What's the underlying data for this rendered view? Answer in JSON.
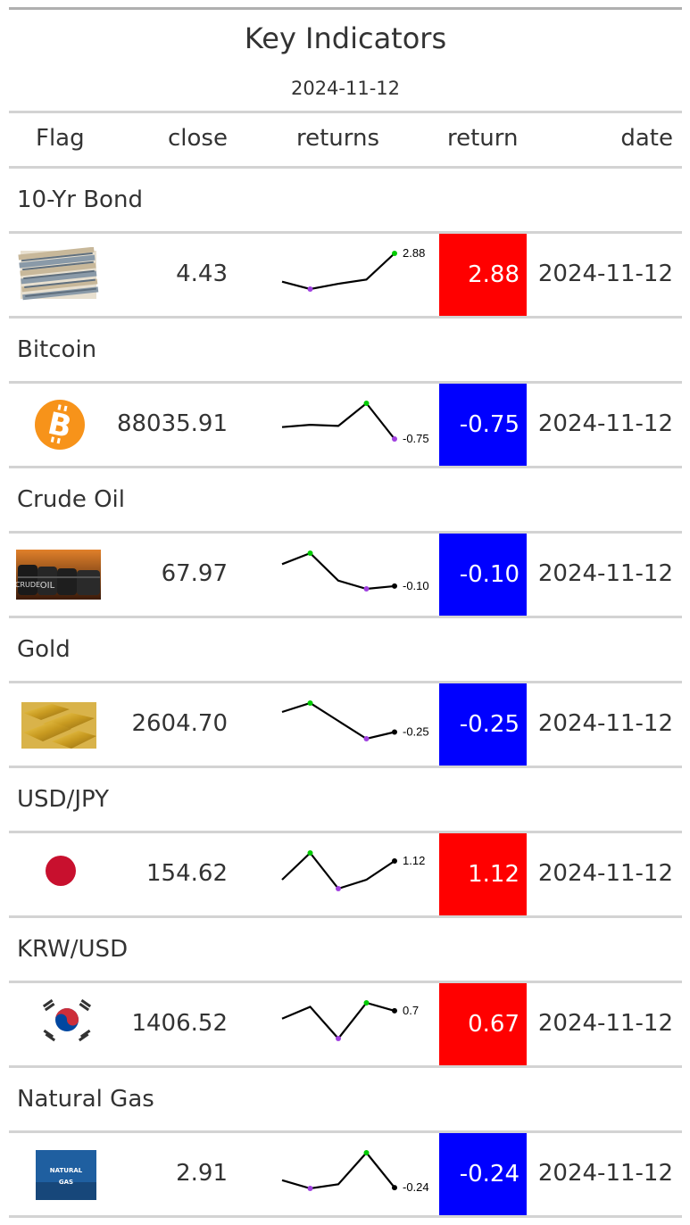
{
  "title": "Key Indicators",
  "subtitle": "2024-11-12",
  "columns": [
    "Flag",
    "close",
    "returns",
    "return",
    "date"
  ],
  "colors": {
    "positive": "#ff0000",
    "negative": "#0000ff",
    "spark_high": "#00cc00",
    "spark_low": "#a040e0",
    "spark_line": "#000000"
  },
  "rows": [
    {
      "group": "10-Yr Bond",
      "flag_icon": "bond-certificates-image",
      "close": "4.43",
      "spark": [
        0.2,
        -0.5,
        0.0,
        0.4,
        2.88
      ],
      "spark_label": "2.88",
      "return": "2.88",
      "return_value": 2.88,
      "date": "2024-11-12"
    },
    {
      "group": "Bitcoin",
      "flag_icon": "bitcoin-logo",
      "close": "88035.91",
      "spark": [
        0.3,
        0.5,
        0.4,
        2.4,
        -0.75
      ],
      "spark_label": "-0.75",
      "return": "-0.75",
      "return_value": -0.75,
      "date": "2024-11-12"
    },
    {
      "group": "Crude Oil",
      "flag_icon": "crude-oil-barrels-image",
      "close": "67.97",
      "spark": [
        0.3,
        0.5,
        0.0,
        -0.15,
        -0.1
      ],
      "spark_label": "-0.10",
      "return": "-0.10",
      "return_value": -0.1,
      "date": "2024-11-12"
    },
    {
      "group": "Gold",
      "flag_icon": "gold-bars-image",
      "close": "2604.70",
      "spark": [
        0.2,
        0.4,
        0.0,
        -0.4,
        -0.25
      ],
      "spark_label": "-0.25",
      "return": "-0.25",
      "return_value": -0.25,
      "date": "2024-11-12"
    },
    {
      "group": "USD/JPY",
      "flag_icon": "japan-flag",
      "close": "154.62",
      "spark": [
        0.7,
        1.3,
        0.5,
        0.7,
        1.12
      ],
      "spark_label": "1.12",
      "return": "1.12",
      "return_value": 1.12,
      "date": "2024-11-12"
    },
    {
      "group": "KRW/USD",
      "flag_icon": "south-korea-flag",
      "close": "1406.52",
      "spark": [
        0.5,
        0.8,
        0.0,
        0.9,
        0.7
      ],
      "spark_label": "0.7",
      "return": "0.67",
      "return_value": 0.67,
      "date": "2024-11-12"
    },
    {
      "group": "Natural Gas",
      "flag_icon": "natural-gas-image",
      "close": "2.91",
      "spark": [
        0.3,
        -0.3,
        0.0,
        2.3,
        -0.24
      ],
      "spark_label": "-0.24",
      "return": "-0.24",
      "return_value": -0.24,
      "date": "2024-11-12"
    }
  ],
  "natural_gas_logo": {
    "line1": "NATURAL",
    "line2": "GAS"
  }
}
